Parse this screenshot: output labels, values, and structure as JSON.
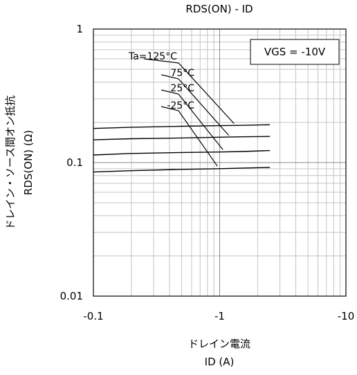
{
  "chart_data": {
    "type": "line",
    "title": "RDS(ON) - ID",
    "xlabel": [
      "ドレイン電流",
      "ID (A)"
    ],
    "ylabel": [
      "ドレイン・ソース間オン抵抗",
      "RDS(ON) (Ω)"
    ],
    "x_scale": "log",
    "y_scale": "log",
    "xlim": [
      -0.1,
      -10
    ],
    "ylim": [
      0.01,
      1
    ],
    "x_ticks": [
      {
        "value": -0.1,
        "label": "-0.1"
      },
      {
        "value": -1,
        "label": "-1"
      },
      {
        "value": -10,
        "label": "-10"
      }
    ],
    "y_ticks": [
      {
        "value": 0.01,
        "label": "0.01"
      },
      {
        "value": 0.1,
        "label": "0.1"
      },
      {
        "value": 1,
        "label": "1"
      }
    ],
    "grid": true,
    "condition_box": "VGS = -10V",
    "series": [
      {
        "name": "Ta=125°C",
        "x": [
          -0.1,
          -0.2,
          -0.5,
          -1,
          -1.5,
          -2.5
        ],
        "y": [
          0.18,
          0.184,
          0.187,
          0.189,
          0.19,
          0.192
        ]
      },
      {
        "name": "75°C",
        "x": [
          -0.1,
          -0.2,
          -0.5,
          -1,
          -1.5,
          -2.5
        ],
        "y": [
          0.148,
          0.151,
          0.153,
          0.155,
          0.156,
          0.157
        ]
      },
      {
        "name": "25°C",
        "x": [
          -0.1,
          -0.2,
          -0.5,
          -1,
          -1.5,
          -2.5
        ],
        "y": [
          0.114,
          0.117,
          0.119,
          0.12,
          0.121,
          0.123
        ]
      },
      {
        "name": "-25°C",
        "x": [
          -0.1,
          -0.2,
          -0.5,
          -1,
          -1.5,
          -2.5
        ],
        "y": [
          0.085,
          0.087,
          0.089,
          0.09,
          0.091,
          0.092
        ]
      }
    ]
  }
}
